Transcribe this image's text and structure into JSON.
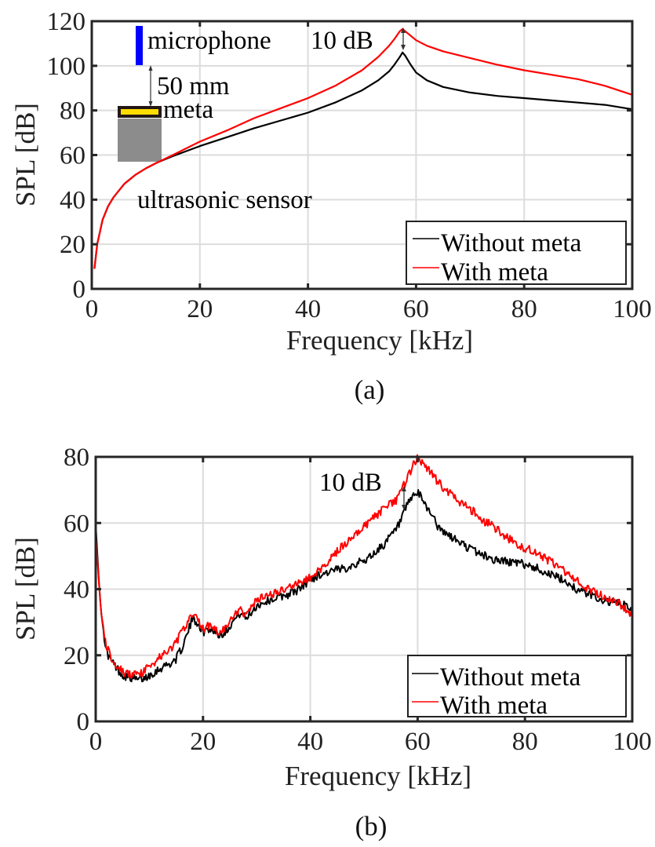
{
  "chart_data": [
    {
      "type": "line",
      "panel": "(a)",
      "caption": "(a)",
      "xlabel": "Frequency [kHz]",
      "ylabel": "SPL [dB]",
      "xlim": [
        0,
        100
      ],
      "ylim": [
        0,
        120
      ],
      "xticks": [
        "0",
        "20",
        "40",
        "60",
        "80",
        "100"
      ],
      "yticks": [
        "0",
        "20",
        "40",
        "60",
        "80",
        "100",
        "120"
      ],
      "grid": true,
      "legend": {
        "placement": "bottom-right",
        "entries": [
          "Without meta",
          "With meta"
        ]
      },
      "annotations": {
        "microphone": "microphone",
        "distance": "50 mm",
        "meta": "meta",
        "sensor": "ultrasonic sensor",
        "gain": "10 dB"
      },
      "series": [
        {
          "name": "Without meta",
          "color": "#000000",
          "x": [
            0.5,
            1,
            2,
            3,
            4,
            5,
            6,
            8,
            10,
            12,
            15,
            20,
            25,
            30,
            35,
            40,
            45,
            50,
            53,
            55,
            56,
            57,
            57.5,
            58,
            59,
            60,
            62,
            65,
            70,
            75,
            80,
            85,
            90,
            95,
            100
          ],
          "y": [
            9,
            20,
            31,
            37,
            41,
            44,
            47,
            51,
            54,
            56.5,
            59.5,
            64,
            68,
            72,
            75.5,
            79,
            83.5,
            89,
            93.5,
            97.5,
            100.5,
            104,
            106,
            104.5,
            100.5,
            97,
            93.5,
            90.5,
            88,
            86.5,
            85.5,
            84.5,
            83.5,
            82.5,
            80.5
          ]
        },
        {
          "name": "With meta",
          "color": "#ff0000",
          "x": [
            0.5,
            1,
            2,
            3,
            4,
            5,
            6,
            8,
            10,
            12,
            15,
            20,
            25,
            30,
            35,
            40,
            45,
            50,
            53,
            55,
            56,
            57,
            57.5,
            58,
            59,
            60,
            62,
            65,
            70,
            75,
            80,
            85,
            90,
            95,
            100
          ],
          "y": [
            9,
            20,
            31,
            37,
            41,
            44,
            47,
            51,
            54,
            56.5,
            60,
            66,
            71,
            76.5,
            81,
            85.5,
            91,
            98,
            104,
            109,
            112,
            115.5,
            116.5,
            115.5,
            113.5,
            111.5,
            109,
            106.5,
            103.5,
            100.5,
            98,
            96,
            94,
            91,
            87
          ]
        }
      ]
    },
    {
      "type": "line",
      "panel": "(b)",
      "caption": "(b)",
      "xlabel": "Frequency [kHz]",
      "ylabel": "SPL [dB]",
      "xlim": [
        0,
        100
      ],
      "ylim": [
        0,
        80
      ],
      "xticks": [
        "0",
        "20",
        "40",
        "60",
        "80",
        "100"
      ],
      "yticks": [
        "0",
        "20",
        "40",
        "60",
        "80"
      ],
      "grid": true,
      "legend": {
        "placement": "bottom-right",
        "entries": [
          "Without meta",
          "With meta"
        ]
      },
      "annotations": {
        "gain": "10 dB"
      },
      "series": [
        {
          "name": "Without meta",
          "color": "#000000",
          "x": [
            0,
            0.5,
            1,
            2,
            3,
            4,
            5,
            6,
            7,
            8,
            9,
            10,
            11,
            12,
            13,
            14,
            15,
            16,
            17,
            18,
            19,
            20,
            21,
            22,
            23,
            24,
            25,
            26,
            27,
            28,
            30,
            32,
            34,
            36,
            38,
            40,
            42,
            44,
            46,
            48,
            50,
            52,
            54,
            56,
            57,
            58,
            59,
            60,
            61,
            62,
            63,
            64,
            66,
            68,
            70,
            72,
            74,
            76,
            78,
            80,
            82,
            84,
            86,
            88,
            90,
            92,
            94,
            96,
            98,
            100
          ],
          "y": [
            60,
            45,
            33,
            21,
            18,
            16,
            14,
            13.5,
            13,
            12.5,
            13,
            14,
            15,
            16,
            17,
            17.5,
            19,
            22,
            26,
            31,
            30,
            27,
            28,
            27.5,
            26,
            27,
            29,
            31,
            33,
            31,
            35,
            36.5,
            37.5,
            38.5,
            40,
            43,
            44.5,
            45.5,
            46,
            47.5,
            48.5,
            51,
            54,
            58,
            61,
            65,
            68,
            69,
            67,
            64,
            62,
            58,
            56,
            54,
            52,
            50.5,
            49,
            48.5,
            48,
            47.5,
            46.5,
            45,
            43.5,
            42,
            39.5,
            38.5,
            37,
            36,
            35.5,
            34
          ]
        },
        {
          "name": "With meta",
          "color": "#ff0000",
          "x": [
            0,
            0.5,
            1,
            2,
            3,
            4,
            5,
            6,
            7,
            8,
            9,
            10,
            11,
            12,
            13,
            14,
            15,
            16,
            17,
            18,
            19,
            20,
            21,
            22,
            23,
            24,
            25,
            26,
            27,
            28,
            30,
            32,
            34,
            36,
            38,
            40,
            42,
            44,
            46,
            48,
            50,
            52,
            54,
            56,
            57,
            58,
            59,
            60,
            61,
            62,
            63,
            64,
            66,
            68,
            70,
            72,
            74,
            76,
            78,
            80,
            82,
            84,
            86,
            88,
            90,
            92,
            94,
            96,
            98,
            100
          ],
          "y": [
            57,
            44,
            33,
            23,
            19,
            17,
            15,
            14.5,
            14,
            14,
            15,
            17,
            18,
            19.5,
            20.5,
            22,
            24,
            27,
            29,
            32.5,
            31,
            28,
            29,
            28.5,
            26.5,
            28,
            30,
            32,
            34,
            32,
            36.5,
            38,
            39,
            40.5,
            42,
            43.5,
            46,
            50,
            53,
            56,
            59,
            62,
            64.5,
            67,
            70,
            73,
            77,
            79.5,
            78,
            76,
            74,
            72,
            69,
            66,
            64,
            61,
            59,
            56.5,
            54,
            52.5,
            51,
            49,
            47,
            44.5,
            42,
            40,
            38.5,
            37,
            35,
            32.5
          ]
        }
      ]
    }
  ]
}
